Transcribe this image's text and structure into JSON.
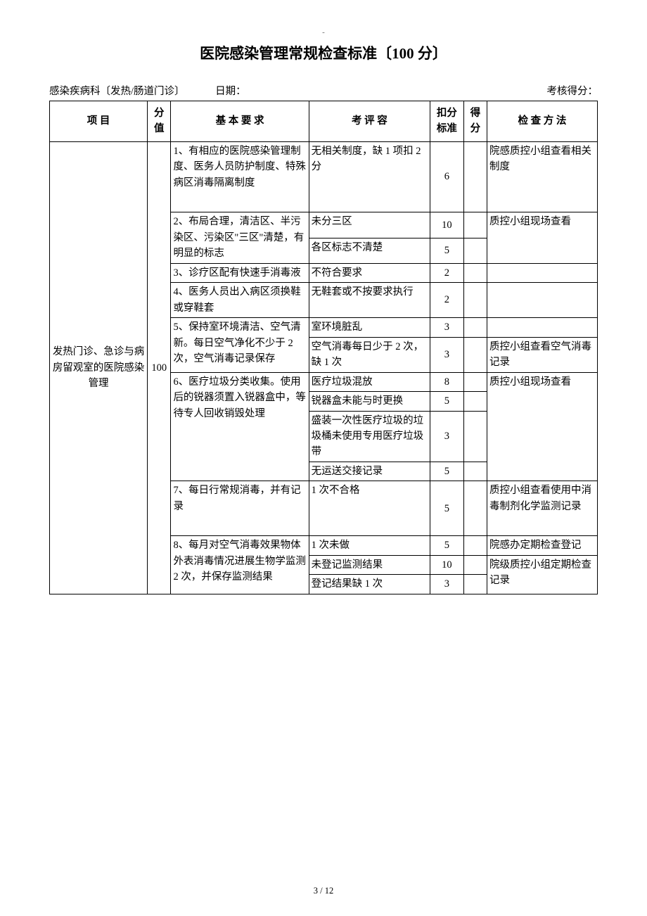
{
  "page_dash": "-",
  "title": "医院感染管理常规检查标准〔100 分〕",
  "meta": {
    "dept": "感染疾病科〔发热/肠道门诊〕",
    "date_label": "日期：",
    "score_label": "考核得分："
  },
  "headers": {
    "project": "项    目",
    "score": "分值",
    "requirement": "基 本 要 求",
    "evaluation": "考 评 容",
    "deduct": "扣分标准",
    "got": "得分",
    "method": "检 查 方 法"
  },
  "category": {
    "name": "发热门诊、急诊与病房留观室的医院感染管理",
    "total_score": "100"
  },
  "rows": [
    {
      "req": "1、有相应的医院感染管理制度、医务人员防护制度、特殊病区消毒隔离制度",
      "req_rowspan": 1,
      "eval": "无相关制度，缺 1 项扣 2 分",
      "deduct": "6",
      "method": "院感质控小组查看相关制度",
      "method_rowspan": 1,
      "extra_pad": true
    },
    {
      "req": "2、布局合理，清洁区、半污染区、污染区\"三区\"清楚，有明显的标志",
      "req_rowspan": 2,
      "eval": "未分三区",
      "deduct": "10",
      "method": "质控小组现场查看",
      "method_rowspan": 2
    },
    {
      "eval": "各区标志不清楚",
      "deduct": "5"
    },
    {
      "req": "3、诊疗区配有快速手消毒液",
      "req_rowspan": 1,
      "eval": "不符合要求",
      "deduct": "2",
      "method": "",
      "method_rowspan": 1
    },
    {
      "req": "4、医务人员出入病区须换鞋或穿鞋套",
      "req_rowspan": 1,
      "eval": "无鞋套或不按要求执行",
      "deduct": "2",
      "method": "",
      "method_rowspan": 1
    },
    {
      "req": "5、保持室环境清洁、空气清新。每日空气净化不少于 2 次，空气消毒记录保存",
      "req_rowspan": 2,
      "eval": "室环境脏乱",
      "deduct": "3",
      "method": "",
      "method_rowspan": 1
    },
    {
      "eval": "空气消毒每日少于 2 次，缺 1 次",
      "deduct": "3",
      "method": "质控小组查看空气消毒记录",
      "method_rowspan": 1
    },
    {
      "req": "6、医疗垃圾分类收集。使用后的锐器须置入锐器盒中，等待专人回收销毁处理",
      "req_rowspan": 4,
      "eval": "医疗垃圾混放",
      "deduct": "8",
      "method": "质控小组现场查看",
      "method_rowspan": 4
    },
    {
      "eval": "锐器盒未能与时更换",
      "deduct": "5"
    },
    {
      "eval": "盛装一次性医疗垃圾的垃圾桶未使用专用医疗垃圾带",
      "deduct": "3"
    },
    {
      "eval": "无运送交接记录",
      "deduct": "5"
    },
    {
      "req": "7、每日行常规消毒，并有记录",
      "req_rowspan": 1,
      "eval": "1 次不合格",
      "deduct": "5",
      "method": "质控小组查看使用中消毒制剂化学监测记录",
      "method_rowspan": 1,
      "extra_pad": true
    },
    {
      "req": "8、每月对空气消毒效果物体外表消毒情况进展生物学监测 2 次，并保存监测结果",
      "req_rowspan": 3,
      "eval": "1 次未做",
      "deduct": "5",
      "method": "院感办定期检查登记",
      "method_rowspan": 1
    },
    {
      "eval": "未登记监测结果",
      "deduct": "10",
      "method": "院级质控小组定期检查记录",
      "method_rowspan": 2
    },
    {
      "eval": "登记结果缺 1 次",
      "deduct": "3"
    }
  ],
  "footer": "3 / 12",
  "style": {
    "background": "#ffffff",
    "text_color": "#000000",
    "border_color": "#000000",
    "title_fontsize": 21,
    "body_fontsize": 14.5,
    "font_family": "SimSun"
  }
}
